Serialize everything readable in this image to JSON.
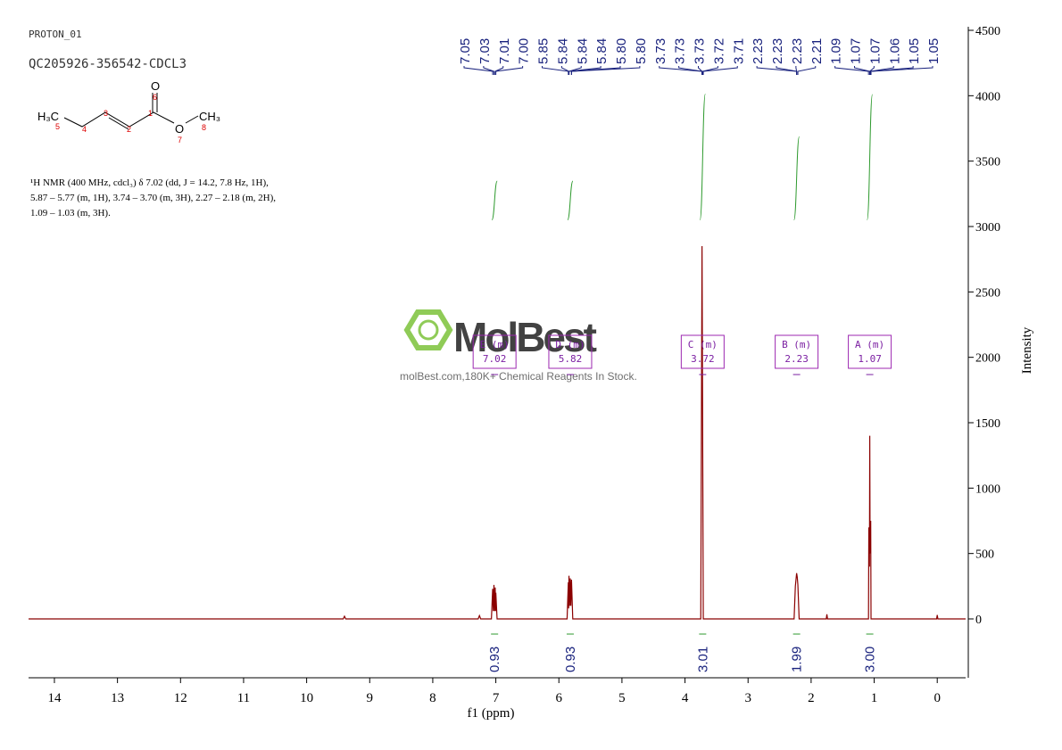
{
  "header": {
    "experiment": "PROTON_01",
    "sample": "QC205926-356542-CDCL3"
  },
  "structure": {
    "methyl_left": "H₃C",
    "methyl_right": "CH₃",
    "carbonyl_o": "O",
    "ester_o": "O",
    "numbers": [
      "1",
      "2",
      "3",
      "4",
      "5",
      "6",
      "7",
      "8"
    ]
  },
  "nmr_text": [
    "¹H NMR (400 MHz, cdcl₃) δ 7.02 (dd, J = 14.2, 7.8 Hz, 1H),",
    "5.87 – 5.77 (m, 1H), 3.74 – 3.70 (m, 3H), 2.27 – 2.18 (m, 2H),",
    "1.09 – 1.03 (m, 3H)."
  ],
  "watermark": {
    "brand": "MolBest",
    "tagline": "molBest.com,180K+ Chemical Reagents In Stock."
  },
  "chart_data": {
    "type": "line",
    "x_label": "f1 (ppm)",
    "y_label": "Intensity",
    "xlim": [
      14.41,
      -0.45
    ],
    "ylim": [
      -450,
      4500
    ],
    "xticks": [
      14,
      13,
      12,
      11,
      10,
      9,
      8,
      7,
      6,
      5,
      4,
      3,
      2,
      1,
      0
    ],
    "yticks": [
      0,
      500,
      1000,
      1500,
      2000,
      2500,
      3000,
      3500,
      4000,
      4500
    ],
    "series": [
      {
        "color": "#8b0000",
        "x": [
          14.41,
          9.42,
          9.4,
          9.38,
          7.28,
          7.26,
          7.24,
          7.07,
          7.05,
          7.04,
          7.03,
          7.02,
          7.01,
          7.005,
          7.0,
          6.98,
          5.87,
          5.85,
          5.845,
          5.84,
          5.83,
          5.82,
          5.81,
          5.8,
          5.78,
          3.75,
          3.73,
          3.71,
          2.27,
          2.25,
          2.24,
          2.23,
          2.22,
          2.21,
          2.19,
          1.76,
          1.75,
          1.74,
          1.09,
          1.085,
          1.075,
          1.07,
          1.065,
          1.055,
          1.05,
          0.01,
          0,
          -0.01,
          -0.45
        ],
        "values": [
          0,
          0,
          20,
          0,
          0,
          25,
          0,
          0,
          230,
          60,
          260,
          60,
          240,
          60,
          200,
          0,
          0,
          280,
          80,
          330,
          100,
          310,
          100,
          300,
          0,
          0,
          2850,
          0,
          0,
          250,
          300,
          350,
          320,
          260,
          0,
          0,
          35,
          0,
          0,
          700,
          400,
          1400,
          500,
          750,
          0,
          0,
          30,
          0,
          0
        ]
      }
    ],
    "peak_labels": [
      7.05,
      7.03,
      7.01,
      {
        "value": 7.0,
        "label": "7.00"
      },
      5.85,
      5.84,
      5.84,
      5.84,
      {
        "value": 5.8,
        "label": "5.80"
      },
      {
        "value": 5.8,
        "label": "5.80"
      },
      3.73,
      3.73,
      3.73,
      3.72,
      3.71,
      2.23,
      2.23,
      2.23,
      2.21,
      1.09,
      1.07,
      1.07,
      1.06,
      1.05,
      1.05
    ],
    "integrals": [
      {
        "ppm": 7.02,
        "value": 0.93
      },
      {
        "ppm": 5.82,
        "value": 0.93
      },
      {
        "ppm": 3.72,
        "value": 3.01
      },
      {
        "ppm": 2.23,
        "value": 1.99
      },
      {
        "ppm": 1.07,
        "value": 3.0,
        "label": "3.00"
      }
    ],
    "multiplets": [
      {
        "name": "E (m)",
        "shift": 7.02
      },
      {
        "name": "D (m)",
        "shift": 5.82
      },
      {
        "name": "C (m)",
        "shift": 3.72
      },
      {
        "name": "B (m)",
        "shift": 2.23
      },
      {
        "name": "A (m)",
        "shift": 1.07
      }
    ]
  }
}
